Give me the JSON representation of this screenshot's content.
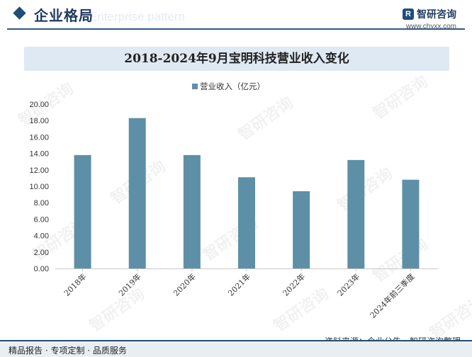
{
  "header": {
    "title": "企业格局",
    "ghost_text": "Enterprise pattern",
    "brand_name": "智研咨询",
    "brand_url": "www.chyxx.com",
    "brand_logo_glyph": "R"
  },
  "watermark_text": "智研咨询",
  "accent_color": "#5d90a7",
  "chart_data": {
    "type": "bar",
    "title": "2018-2024年9月宝明科技营业收入变化",
    "categories": [
      "2018年",
      "2019年",
      "2020年",
      "2021年",
      "2022年",
      "2023年",
      "2024年前三季度"
    ],
    "series": [
      {
        "name": "营业收入（亿元）",
        "values": [
          13.8,
          18.3,
          13.8,
          11.1,
          9.4,
          13.2,
          10.8
        ]
      }
    ],
    "ylim": [
      0,
      20
    ],
    "yticks": [
      "0.00",
      "2.00",
      "4.00",
      "6.00",
      "8.00",
      "10.00",
      "12.00",
      "14.00",
      "16.00",
      "18.00",
      "20.00"
    ],
    "grid": false,
    "legend_position": "top-center"
  },
  "footer": {
    "source": "资料来源：企业公告、智研咨询整理",
    "services": "精品报告 · 专项定制 · 品质服务"
  }
}
